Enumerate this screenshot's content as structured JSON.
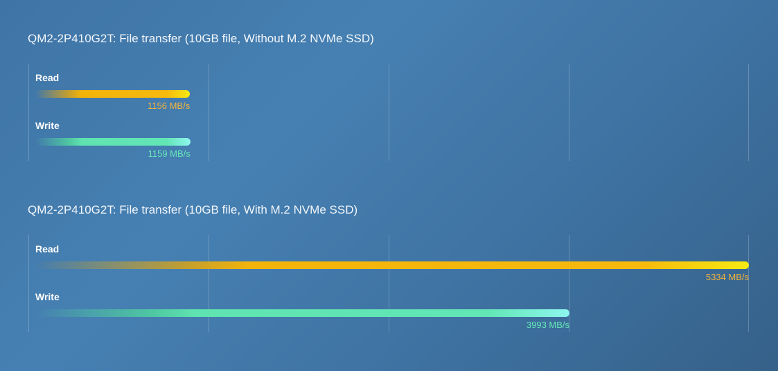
{
  "chart_data": [
    {
      "type": "bar",
      "orientation": "horizontal",
      "title": "QM2-2P410G2T: File transfer (10GB file, Without M.2 NVMe SSD)",
      "unit": "MB/s",
      "xlim": [
        0,
        5334
      ],
      "grid": true,
      "categories": [
        "Read",
        "Write"
      ],
      "values": [
        1156,
        1159
      ],
      "value_labels": [
        "1156 MB/s",
        "1159 MB/s"
      ],
      "bar_colors": [
        "#f6b90c",
        "#63e6b6"
      ]
    },
    {
      "type": "bar",
      "orientation": "horizontal",
      "title": "QM2-2P410G2T: File transfer (10GB file, With M.2 NVMe SSD)",
      "unit": "MB/s",
      "xlim": [
        0,
        5334
      ],
      "grid": true,
      "categories": [
        "Read",
        "Write"
      ],
      "values": [
        5334,
        3993
      ],
      "value_labels": [
        "5334 MB/s",
        "3993 MB/s"
      ],
      "bar_colors": [
        "#f6b90c",
        "#63e6b6"
      ]
    }
  ]
}
